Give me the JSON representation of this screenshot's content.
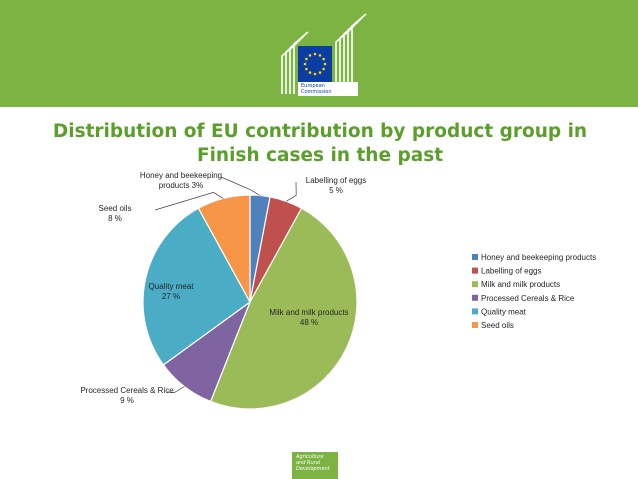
{
  "header": {
    "organisation_line1": "European",
    "organisation_line2": "Commission"
  },
  "chart_data": {
    "type": "pie",
    "title": "Distribution of EU contribution by product group in Finish cases in the past",
    "slices": [
      {
        "name": "Honey and beekeeping products",
        "value": 3,
        "color": "#4f81bd",
        "label_lines": [
          "Honey and beekeeping",
          "products 3%"
        ]
      },
      {
        "name": "Labelling of eggs",
        "value": 5,
        "color": "#c0504d",
        "label_lines": [
          "Labelling of eggs",
          "5 %"
        ]
      },
      {
        "name": "Milk and milk products",
        "value": 48,
        "color": "#9bbb59",
        "label_lines": [
          "Milk and milk products",
          "48 %"
        ]
      },
      {
        "name": "Processed Cereals & Rice",
        "value": 9,
        "color": "#8064a2",
        "label_lines": [
          "Processed Cereals & Rice",
          "9 %"
        ]
      },
      {
        "name": "Quality meat",
        "value": 27,
        "color": "#4bacc6",
        "label_lines": [
          "Quality meat",
          "27 %"
        ]
      },
      {
        "name": "Seed oils",
        "value": 8,
        "color": "#f79646",
        "label_lines": [
          "Seed oils",
          "8 %"
        ]
      }
    ],
    "legend_position": "right"
  },
  "footer": {
    "line1": "Agriculture",
    "line2": "and Rural",
    "line3": "Development"
  }
}
